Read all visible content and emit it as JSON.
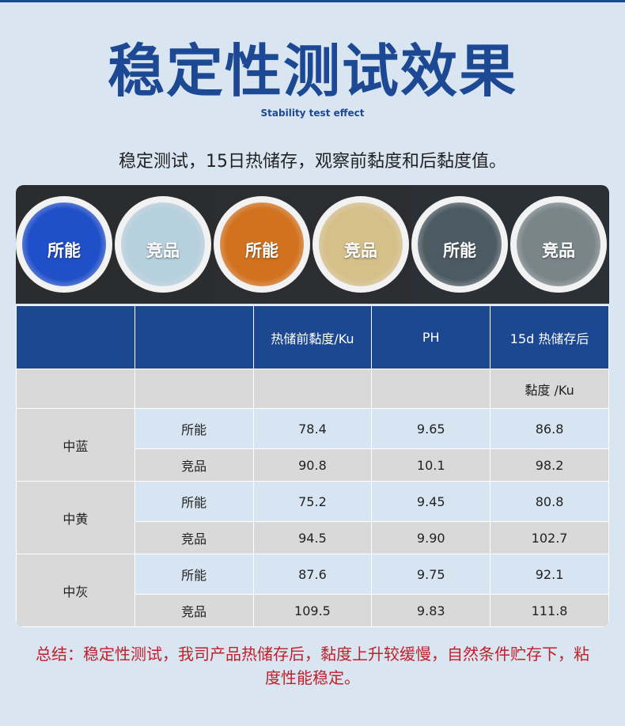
{
  "title": "稳定性测试效果",
  "subtitle": "Stability test effect",
  "intro": "稳定测试，15日热储存，观察前黏度和后黏度值。",
  "photo": {
    "panels": [
      {
        "bg": "#2a2c2e",
        "left": {
          "label": "所能",
          "color": "#1f4fc9"
        },
        "right": {
          "label": "竞品",
          "color": "#b7d0de"
        }
      },
      {
        "bg": "#2c2d30",
        "left": {
          "label": "所能",
          "color": "#d2721e"
        },
        "right": {
          "label": "竞品",
          "color": "#d6c08a"
        }
      },
      {
        "bg": "#2b2f36",
        "left": {
          "label": "所能",
          "color": "#4c5a62"
        },
        "right": {
          "label": "竞品",
          "color": "#7a858a"
        }
      }
    ]
  },
  "table": {
    "headers": [
      "",
      "",
      "热储前黏度/Ku",
      "PH",
      "15d 热储存后"
    ],
    "subheader": "黏度 /Ku",
    "groups": [
      {
        "name": "中蓝",
        "rows": [
          [
            "所能",
            "78.4",
            "9.65",
            "86.8"
          ],
          [
            "竞品",
            "90.8",
            "10.1",
            "98.2"
          ]
        ]
      },
      {
        "name": "中黄",
        "rows": [
          [
            "所能",
            "75.2",
            "9.45",
            "80.8"
          ],
          [
            "竞品",
            "94.5",
            "9.90",
            "102.7"
          ]
        ]
      },
      {
        "name": "中灰",
        "rows": [
          [
            "所能",
            "87.6",
            "9.75",
            "92.1"
          ],
          [
            "竞品",
            "109.5",
            "9.83",
            "111.8"
          ]
        ]
      }
    ]
  },
  "summary": "总结：稳定性测试，我司产品热储存后，黏度上升较缓慢，自然条件贮存下，粘度性能稳定。",
  "colors": {
    "brand": "#1c4894",
    "header": "#1b4891",
    "summary": "#c0202a"
  }
}
